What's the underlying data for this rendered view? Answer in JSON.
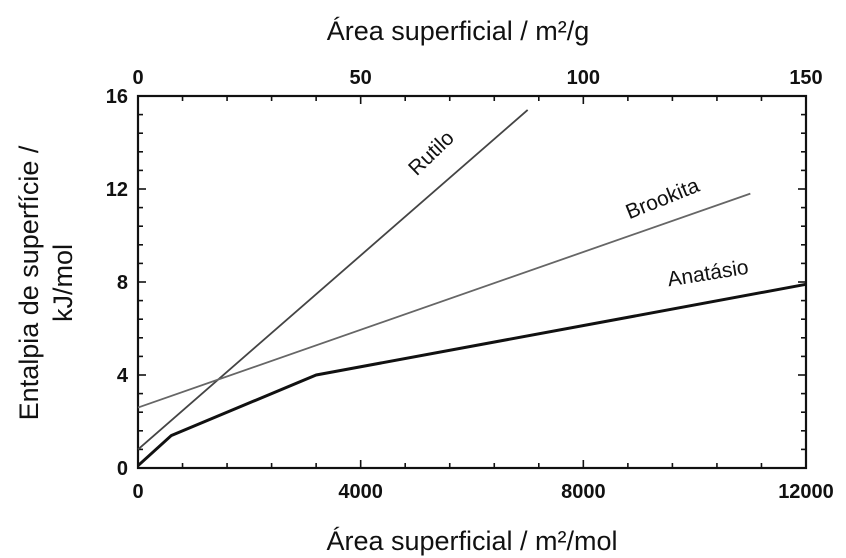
{
  "chart_data": {
    "type": "line",
    "xlabel": "Área superficial / m²/mol",
    "x2label": "Área superficial / m²/g",
    "ylabel_line1": "Entalpia de superfície /",
    "ylabel_line2": "kJ/mol",
    "xlim": [
      0,
      12000
    ],
    "x2lim": [
      0,
      150
    ],
    "ylim": [
      0,
      16
    ],
    "xticks": [
      0,
      4000,
      8000,
      12000
    ],
    "x2ticks": [
      0,
      50,
      100,
      150
    ],
    "yticks": [
      0,
      4,
      8,
      12,
      16
    ],
    "grid": false,
    "series": [
      {
        "name": "Rutilo",
        "x": [
          0,
          7000
        ],
        "y": [
          0.8,
          15.4
        ],
        "color": "#444444"
      },
      {
        "name": "Brookita",
        "x": [
          0,
          11000
        ],
        "y": [
          2.6,
          11.8
        ],
        "color": "#666666"
      },
      {
        "name": "Anatásio",
        "x": [
          0,
          600,
          3200,
          12000
        ],
        "y": [
          0.1,
          1.4,
          4.0,
          7.9
        ],
        "color": "#111111"
      }
    ]
  }
}
